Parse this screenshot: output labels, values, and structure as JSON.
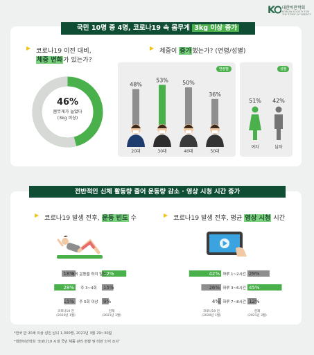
{
  "logo": {
    "text": "대한비만학회",
    "subtitle": "KOREAN SOCIETY FOR THE STUDY OF OBESITY"
  },
  "section1": {
    "banner_pre": "국민 10명 중 4명, 코로나19 속 몸무게 ",
    "banner_hl": "3kg 이상 증가",
    "q1_pre": "코로나19 이전 대비,",
    "q1_hl": "체중 변화",
    "q1_post": "가 있는가?",
    "donut_pct": "46%",
    "donut_line1": "몸무게가 늘었다",
    "donut_line2": "(3kg 이상)",
    "q2_pre": "체중이 ",
    "q2_hl": "증가",
    "q2_post": "했는가? (연령/성별)",
    "tag_age": "연령별",
    "tag_gender": "성별"
  },
  "section2": {
    "banner": "전반적인 신체 활동량 줄어 운동량 감소 · 영상 시청 시간 증가",
    "q3_pre": "코로나19 발생 전후, ",
    "q3_hl": "운동 빈도",
    "q3_post": " 수",
    "q4_pre": "코로나19 발생 전후, 평균 ",
    "q4_hl": "영상 시청",
    "q4_post": " 시간"
  },
  "chart_data": [
    {
      "type": "pie",
      "title": "코로나19 이전 대비, 체중 변화가 있는가?",
      "slices": [
        {
          "label": "몸무게가 늘었다 (3kg 이상)",
          "value": 46
        },
        {
          "label": "",
          "value": 54
        }
      ]
    },
    {
      "type": "bar",
      "title": "체중이 증가했는가? (연령/성별)",
      "categories": [
        "20대",
        "30대",
        "40대",
        "50대"
      ],
      "values": [
        48,
        53,
        50,
        36
      ],
      "value_labels": [
        "48%",
        "53%",
        "50%",
        "36%"
      ],
      "group": "연령별",
      "ylim": [
        0,
        100
      ],
      "highlight": "30대"
    },
    {
      "type": "bar",
      "title": "성별",
      "categories": [
        "여자",
        "남자"
      ],
      "values": [
        51,
        42
      ],
      "value_labels": [
        "51%",
        "42%"
      ],
      "group": "성별"
    },
    {
      "type": "bar",
      "title": "코로나19 발생 전후, 운동 빈도 수",
      "categories": [
        "거의 운동을 하지 않음",
        "주 3~4회",
        "주 5회 이상"
      ],
      "series": [
        {
          "name": "코로나19 전 (2020년 1월)",
          "values": [
            18,
            28,
            15
          ],
          "value_labels": [
            "18%",
            "28%",
            "15%"
          ]
        },
        {
          "name": "현재 (2021년 3월)",
          "values": [
            32,
            15,
            9
          ],
          "value_labels": [
            "32%",
            "15%",
            "9%"
          ]
        }
      ]
    },
    {
      "type": "bar",
      "title": "코로나19 발생 전후, 평균 영상 시청 시간",
      "categories": [
        "하루 1~2시간",
        "하루 3~6시간",
        "하루 7~8시간"
      ],
      "series": [
        {
          "name": "코로나19 전 (2020년 1월)",
          "values": [
            42,
            26,
            4
          ],
          "value_labels": [
            "42%",
            "26%",
            "4%"
          ]
        },
        {
          "name": "현재 (2021년 3월)",
          "values": [
            29,
            45,
            12
          ],
          "value_labels": [
            "29%",
            "45%",
            "12%"
          ]
        }
      ]
    }
  ],
  "labels": {
    "before_line1": "코로나19 전",
    "before_line2": "(2020년 1월)",
    "after_line1": "현재",
    "after_line2": "(2021년 3월)"
  },
  "footnotes": {
    "line1": "*전국 만 20세 이상 성인 남녀 1,000명, 2021년 3월 29~30일",
    "line2": "*대한비만학회 '코로나19 시대 국민 체중 관리 현황 및 비만 인식 조사'"
  },
  "colors": {
    "dark_green": "#0f4d35",
    "green": "#4ab04c",
    "gray": "#8e8e8e",
    "dark_gray": "#747474",
    "light_panel": "#eeeeee",
    "accent_yellow": "#f0c419"
  }
}
